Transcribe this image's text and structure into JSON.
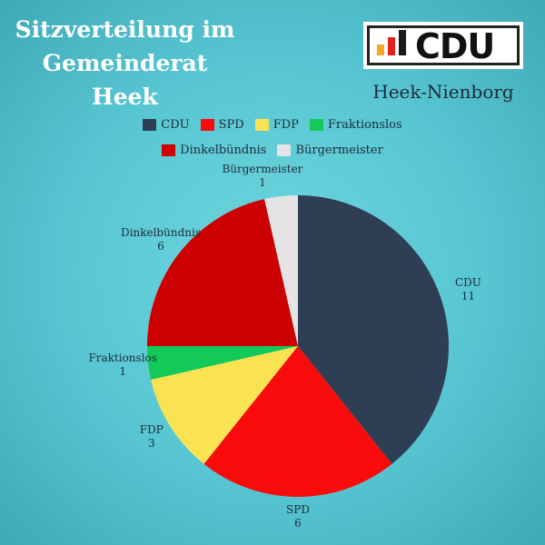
{
  "header": {
    "title_lines": [
      "Sitzverteilung im",
      "Gemeinderat",
      "Heek"
    ],
    "logo_text": "CDU",
    "logo_bar_colors": [
      "#f5a623",
      "#e2231a",
      "#1a1a1a"
    ],
    "subtitle": "Heek-Nienborg"
  },
  "chart_data": {
    "type": "pie",
    "title": "Sitzverteilung im Gemeinderat Heek",
    "categories": [
      "CDU",
      "SPD",
      "FDP",
      "Fraktionslos",
      "Dinkelbündnis",
      "Bürgermeister"
    ],
    "values": [
      11,
      6,
      3,
      1,
      6,
      1
    ],
    "colors": [
      "#2e3f55",
      "#fa0b0b",
      "#fae353",
      "#13c95a",
      "#cc0000",
      "#e4e4e4"
    ],
    "legend_position": "top",
    "legend_rows": [
      [
        0,
        1,
        2,
        3
      ],
      [
        4,
        5
      ]
    ]
  }
}
